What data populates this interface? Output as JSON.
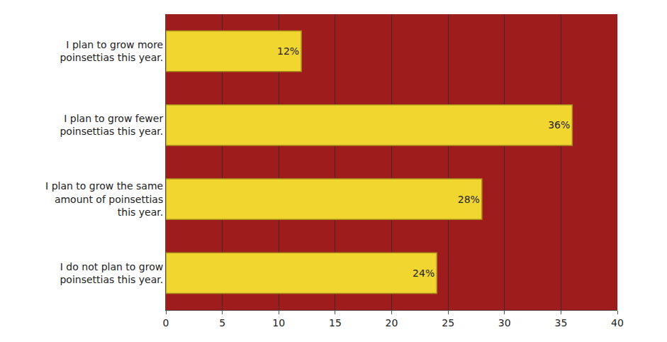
{
  "chart_data": {
    "type": "bar",
    "orientation": "horizontal",
    "categories": [
      "I plan to grow more poinsettias this year.",
      "I plan to grow fewer poinsettias this year.",
      "I plan to grow the same amount of poinsettias this year.",
      "I do not plan to grow poinsettias this year."
    ],
    "values": [
      12,
      36,
      28,
      24
    ],
    "value_labels": [
      "12%",
      "36%",
      "28%",
      "24%"
    ],
    "data_labels": true,
    "color": "#f2d630",
    "xlim": [
      0,
      40
    ],
    "xticks": [
      0,
      5,
      10,
      15,
      20,
      25,
      30,
      35,
      40
    ],
    "grid": true
  }
}
